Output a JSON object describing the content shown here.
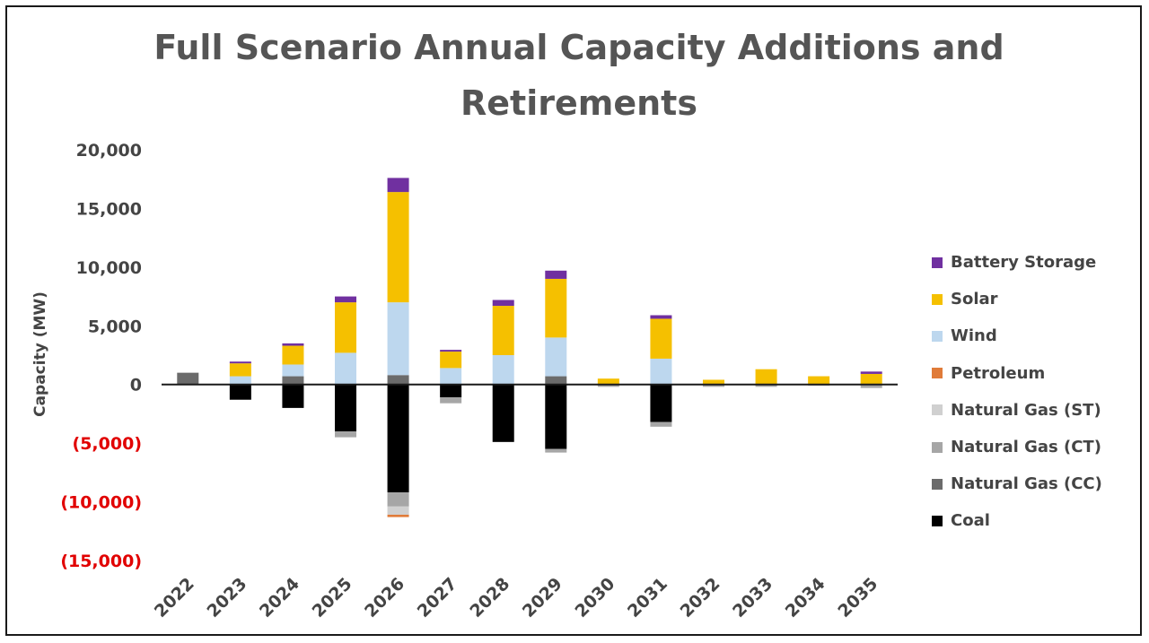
{
  "chart_data": {
    "type": "bar",
    "stacked": true,
    "title": "Full Scenario Annual Capacity Additions and Retirements",
    "ylabel": "Capacity (MW)",
    "xlabel": "",
    "ylim": [
      -15000,
      20000
    ],
    "yticks": [
      {
        "value": 20000,
        "label": "20,000"
      },
      {
        "value": 15000,
        "label": "15,000"
      },
      {
        "value": 10000,
        "label": "10,000"
      },
      {
        "value": 5000,
        "label": "5,000"
      },
      {
        "value": 0,
        "label": "0"
      },
      {
        "value": -5000,
        "label": "(5,000)"
      },
      {
        "value": -10000,
        "label": "(10,000)"
      },
      {
        "value": -15000,
        "label": "(15,000)"
      }
    ],
    "negative_tick_color": "#e10000",
    "grid": false,
    "legend_position": "right",
    "categories": [
      "2022",
      "2023",
      "2024",
      "2025",
      "2026",
      "2027",
      "2028",
      "2029",
      "2030",
      "2031",
      "2032",
      "2033",
      "2034",
      "2035"
    ],
    "series": [
      {
        "name": "Coal",
        "color": "#000000",
        "values": [
          0,
          -1300,
          -2000,
          -4000,
          -9200,
          -1100,
          -4900,
          -5500,
          0,
          -3200,
          0,
          0,
          0,
          0
        ]
      },
      {
        "name": "Natural Gas (CC)",
        "color": "#6b6b6b",
        "values": [
          1000,
          0,
          700,
          0,
          800,
          0,
          0,
          700,
          0,
          0,
          0,
          0,
          0,
          0
        ]
      },
      {
        "name": "Natural Gas (CT)",
        "color": "#a6a6a6",
        "values": [
          0,
          0,
          0,
          -500,
          -1200,
          -500,
          0,
          -300,
          -200,
          -400,
          -200,
          -200,
          -100,
          -300
        ]
      },
      {
        "name": "Natural Gas (ST)",
        "color": "#d0d0d0",
        "values": [
          0,
          0,
          0,
          0,
          -700,
          0,
          0,
          0,
          0,
          0,
          0,
          0,
          0,
          0
        ]
      },
      {
        "name": "Petroleum",
        "color": "#e07b39",
        "values": [
          0,
          0,
          0,
          0,
          -200,
          0,
          0,
          0,
          0,
          0,
          0,
          0,
          0,
          0
        ]
      },
      {
        "name": "Wind",
        "color": "#bdd7ee",
        "values": [
          0,
          700,
          1000,
          2700,
          6200,
          1400,
          2500,
          3300,
          0,
          2200,
          0,
          0,
          0,
          0
        ]
      },
      {
        "name": "Solar",
        "color": "#f5c000",
        "values": [
          0,
          1100,
          1600,
          4300,
          9400,
          1400,
          4200,
          5000,
          500,
          3400,
          400,
          1300,
          700,
          900
        ]
      },
      {
        "name": "Battery Storage",
        "color": "#7030a0",
        "values": [
          0,
          150,
          200,
          500,
          1200,
          150,
          500,
          700,
          0,
          300,
          0,
          0,
          0,
          200
        ]
      }
    ],
    "legend_order": [
      "Battery Storage",
      "Solar",
      "Wind",
      "Petroleum",
      "Natural Gas (ST)",
      "Natural Gas (CT)",
      "Natural Gas (CC)",
      "Coal"
    ]
  }
}
